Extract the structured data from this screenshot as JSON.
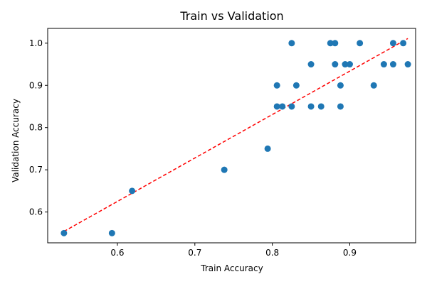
{
  "chart_data": {
    "type": "scatter",
    "title": "Train vs Validation",
    "xlabel": "Train Accuracy",
    "ylabel": "Validation Accuracy",
    "xlim": [
      0.51,
      0.985
    ],
    "ylim": [
      0.527,
      1.035
    ],
    "xticks": [
      0.6,
      0.7,
      0.8,
      0.9
    ],
    "yticks": [
      0.6,
      0.7,
      0.8,
      0.9,
      1.0
    ],
    "xtick_labels": [
      "0.6",
      "0.7",
      "0.8",
      "0.9"
    ],
    "ytick_labels": [
      "0.6",
      "0.7",
      "0.8",
      "0.9",
      "1.0"
    ],
    "grid": false,
    "point_color": "#1f77b4",
    "trend_color": "#ff0000",
    "points": [
      {
        "x": 0.531,
        "y": 0.55
      },
      {
        "x": 0.593,
        "y": 0.55
      },
      {
        "x": 0.619,
        "y": 0.65
      },
      {
        "x": 0.738,
        "y": 0.7
      },
      {
        "x": 0.794,
        "y": 0.75
      },
      {
        "x": 0.806,
        "y": 0.9
      },
      {
        "x": 0.806,
        "y": 0.85
      },
      {
        "x": 0.813,
        "y": 0.85
      },
      {
        "x": 0.825,
        "y": 0.85
      },
      {
        "x": 0.825,
        "y": 1.0
      },
      {
        "x": 0.831,
        "y": 0.9
      },
      {
        "x": 0.85,
        "y": 0.95
      },
      {
        "x": 0.85,
        "y": 0.85
      },
      {
        "x": 0.863,
        "y": 0.85
      },
      {
        "x": 0.875,
        "y": 1.0
      },
      {
        "x": 0.881,
        "y": 1.0
      },
      {
        "x": 0.881,
        "y": 0.95
      },
      {
        "x": 0.888,
        "y": 0.9
      },
      {
        "x": 0.888,
        "y": 0.85
      },
      {
        "x": 0.894,
        "y": 0.95
      },
      {
        "x": 0.9,
        "y": 0.95
      },
      {
        "x": 0.913,
        "y": 1.0
      },
      {
        "x": 0.931,
        "y": 0.9
      },
      {
        "x": 0.944,
        "y": 0.95
      },
      {
        "x": 0.956,
        "y": 1.0
      },
      {
        "x": 0.956,
        "y": 0.95
      },
      {
        "x": 0.969,
        "y": 1.0
      },
      {
        "x": 0.975,
        "y": 0.95
      }
    ],
    "trend_line": {
      "x": [
        0.531,
        0.975
      ],
      "y": [
        0.554,
        1.011
      ]
    }
  }
}
